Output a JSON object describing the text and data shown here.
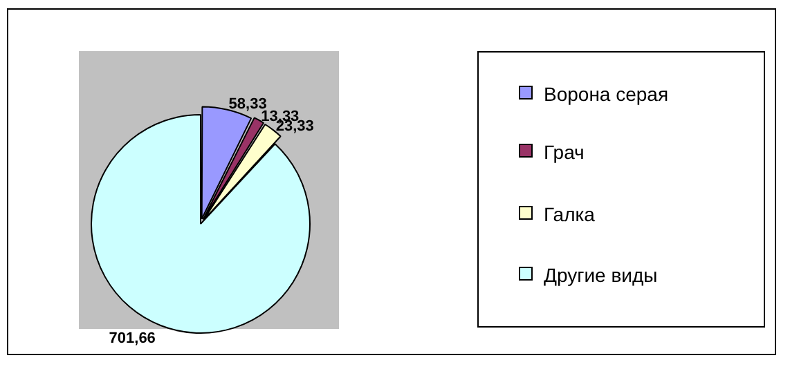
{
  "chart_data": {
    "type": "pie",
    "categories": [
      "Ворона серая",
      "Грач",
      "Галка",
      "Другие виды"
    ],
    "values": [
      58.33,
      13.33,
      23.33,
      701.66
    ],
    "colors": [
      "#9999ff",
      "#993366",
      "#ffffcc",
      "#ccffff"
    ],
    "value_labels": [
      "58,33",
      "13,33",
      "23,33",
      "701,66"
    ],
    "legend": "right"
  }
}
